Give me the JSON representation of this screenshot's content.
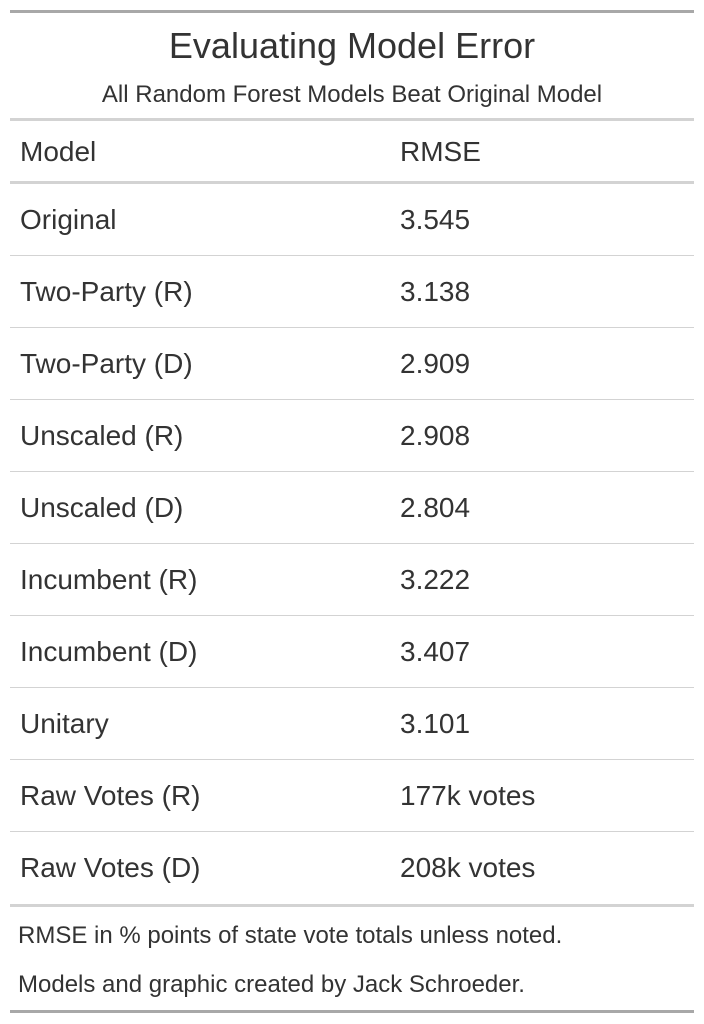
{
  "chart_data": {
    "type": "table",
    "title": "Evaluating Model Error",
    "subtitle": "All Random Forest Models Beat Original Model",
    "columns": [
      "Model",
      "RMSE"
    ],
    "rows": [
      {
        "model": "Original",
        "rmse": "3.545"
      },
      {
        "model": "Two-Party (R)",
        "rmse": "3.138"
      },
      {
        "model": "Two-Party (D)",
        "rmse": "2.909"
      },
      {
        "model": "Unscaled (R)",
        "rmse": "2.908"
      },
      {
        "model": "Unscaled (D)",
        "rmse": "2.804"
      },
      {
        "model": "Incumbent (R)",
        "rmse": "3.222"
      },
      {
        "model": "Incumbent (D)",
        "rmse": "3.407"
      },
      {
        "model": "Unitary",
        "rmse": "3.101"
      },
      {
        "model": "Raw Votes (R)",
        "rmse": "177k votes"
      },
      {
        "model": "Raw Votes (D)",
        "rmse": "208k votes"
      }
    ],
    "footnotes": [
      "RMSE in % points of state vote totals unless noted.",
      "Models and graphic created by Jack Schroeder."
    ]
  },
  "colors": {
    "text": "#333333",
    "outer_rule": "#a8a8a8",
    "inner_rule": "#d3d3d3",
    "background": "#ffffff"
  }
}
